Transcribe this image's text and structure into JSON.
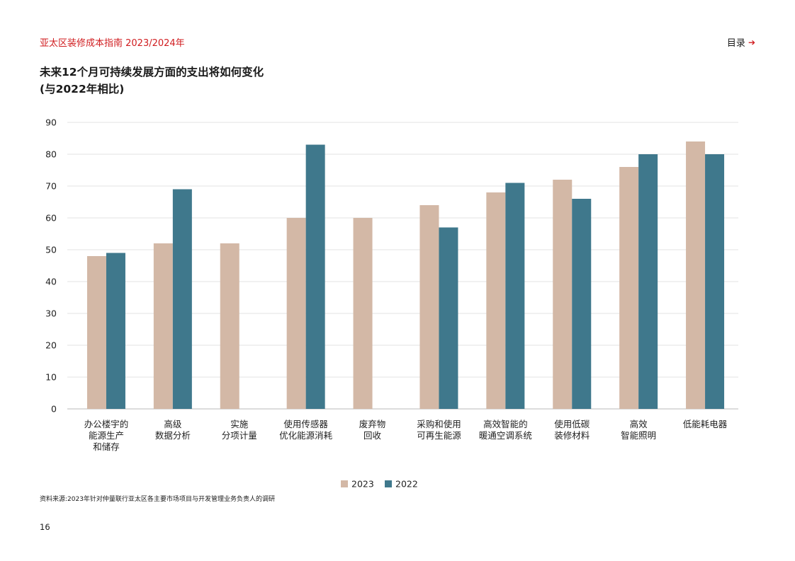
{
  "header": {
    "doc_title": "亚太区装修成本指南 2023/2024年",
    "toc_label": "目录",
    "toc_arrow": "➔"
  },
  "chart_data": {
    "type": "bar",
    "title_lines": [
      "未来12个月可持续发展方面的支出将如何变化",
      "(与2022年相比)"
    ],
    "categories": [
      [
        "办公楼宇的",
        "能源生产",
        "和储存"
      ],
      [
        "高级",
        "数据分析"
      ],
      [
        "实施",
        "分项计量"
      ],
      [
        "使用传感器",
        "优化能源消耗"
      ],
      [
        "废弃物",
        "回收"
      ],
      [
        "采购和使用",
        "可再生能源"
      ],
      [
        "高效智能的",
        "暖通空调系统"
      ],
      [
        "使用低碳",
        "装修材料"
      ],
      [
        "高效",
        "智能照明"
      ],
      [
        "低能耗电器"
      ]
    ],
    "series": [
      {
        "name": "2023",
        "color": "#d3b8a6",
        "values": [
          48,
          52,
          52,
          60,
          60,
          64,
          68,
          72,
          76,
          84
        ]
      },
      {
        "name": "2022",
        "color": "#3f788c",
        "values": [
          49,
          69,
          null,
          83,
          null,
          57,
          71,
          66,
          80,
          80
        ]
      }
    ],
    "ylim": [
      0,
      90
    ],
    "yticks": [
      0,
      10,
      20,
      30,
      40,
      50,
      60,
      70,
      80,
      90
    ],
    "grid": true,
    "legend_position": "bottom-center"
  },
  "source_text": "资料来源:2023年针对仲量联行亚太区各主要市场项目与开发管理业务负责人的调研",
  "page_number": "16"
}
